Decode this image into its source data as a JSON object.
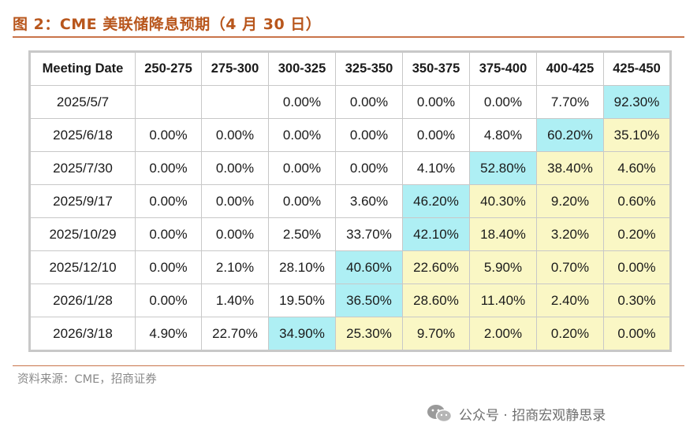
{
  "figure": {
    "title": "图 2：CME 美联储降息预期（4 月 30 日）",
    "source": "资料来源：CME，招商证券"
  },
  "table": {
    "headers": [
      "Meeting Date",
      "250-275",
      "275-300",
      "300-325",
      "325-350",
      "350-375",
      "375-400",
      "400-425",
      "425-450"
    ],
    "rows": [
      {
        "date": "2025/5/7",
        "cells": [
          "",
          "",
          "0.00%",
          "0.00%",
          "0.00%",
          "0.00%",
          "7.70%",
          "92.30%"
        ]
      },
      {
        "date": "2025/6/18",
        "cells": [
          "0.00%",
          "0.00%",
          "0.00%",
          "0.00%",
          "0.00%",
          "4.80%",
          "60.20%",
          "35.10%"
        ]
      },
      {
        "date": "2025/7/30",
        "cells": [
          "0.00%",
          "0.00%",
          "0.00%",
          "0.00%",
          "4.10%",
          "52.80%",
          "38.40%",
          "4.60%"
        ]
      },
      {
        "date": "2025/9/17",
        "cells": [
          "0.00%",
          "0.00%",
          "0.00%",
          "3.60%",
          "46.20%",
          "40.30%",
          "9.20%",
          "0.60%"
        ]
      },
      {
        "date": "2025/10/29",
        "cells": [
          "0.00%",
          "0.00%",
          "2.50%",
          "33.70%",
          "42.10%",
          "18.40%",
          "3.20%",
          "0.20%"
        ]
      },
      {
        "date": "2025/12/10",
        "cells": [
          "0.00%",
          "2.10%",
          "28.10%",
          "40.60%",
          "22.60%",
          "5.90%",
          "0.70%",
          "0.00%"
        ]
      },
      {
        "date": "2026/1/28",
        "cells": [
          "0.00%",
          "1.40%",
          "19.50%",
          "36.50%",
          "28.60%",
          "11.40%",
          "2.40%",
          "0.30%"
        ]
      },
      {
        "date": "2026/3/18",
        "cells": [
          "4.90%",
          "22.70%",
          "34.90%",
          "25.30%",
          "9.70%",
          "2.00%",
          "0.20%",
          "0.00%"
        ]
      }
    ],
    "highlight_col": [
      7,
      6,
      5,
      4,
      4,
      3,
      3,
      2
    ],
    "colors": {
      "highlight": "#aeeff4",
      "shaded": "#faf7c5",
      "title": "#b8561c",
      "rule": "#c9744a"
    }
  },
  "watermark": {
    "icon": "wechat-icon",
    "text": "公众号 · 招商宏观静思录"
  }
}
